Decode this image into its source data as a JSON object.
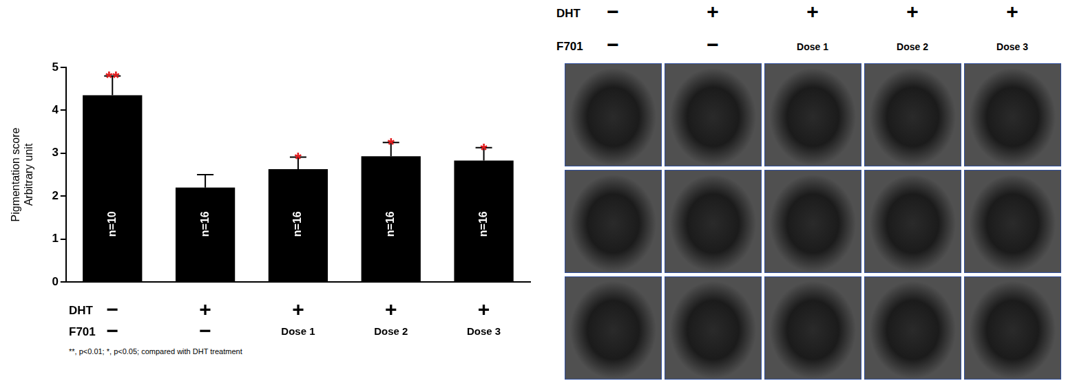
{
  "chart_data": {
    "type": "bar",
    "categories": [
      [
        "−",
        "−"
      ],
      [
        "+",
        "−"
      ],
      [
        "+",
        "Dose 1"
      ],
      [
        "+",
        "Dose 2"
      ],
      [
        "+",
        "Dose 3"
      ]
    ],
    "category_rows": [
      "DHT",
      "F701"
    ],
    "values": [
      4.35,
      2.2,
      2.63,
      2.93,
      2.83
    ],
    "errors": [
      0.45,
      0.3,
      0.28,
      0.32,
      0.3
    ],
    "n_labels": [
      "n=10",
      "n=16",
      "n=16",
      "n=16",
      "n=16"
    ],
    "significance": [
      "**",
      null,
      "*",
      "*",
      "*"
    ],
    "significance_color": "#e31a1c",
    "y_label": [
      "Pigmentation score",
      "Arbitrary unit"
    ],
    "ylim": [
      0,
      5
    ],
    "yticks": [
      0,
      1,
      2,
      3,
      4,
      5
    ],
    "color": "#000000",
    "grid": false,
    "footnote": "**, p<0.01; *, p<0.05; compared with DHT treatment"
  },
  "photo_panel": {
    "rows": [
      {
        "name": "DHT",
        "labels": [
          "−",
          "+",
          "+",
          "+",
          "+"
        ]
      },
      {
        "name": "F701",
        "labels": [
          "−",
          "−",
          "Dose 1",
          "Dose 2",
          "Dose 3"
        ]
      }
    ],
    "photo_rows": 3
  }
}
